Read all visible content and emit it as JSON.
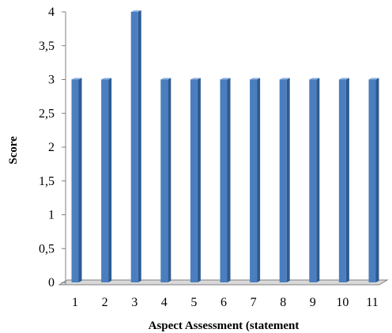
{
  "chart_data": {
    "type": "bar",
    "title": "",
    "xlabel": "Aspect Assessment (statement",
    "ylabel": "Score",
    "categories": [
      "1",
      "2",
      "3",
      "4",
      "5",
      "6",
      "7",
      "8",
      "9",
      "10",
      "11"
    ],
    "values": [
      3,
      3,
      4,
      3,
      3,
      3,
      3,
      3,
      3,
      3,
      3
    ],
    "ylim": [
      0,
      4
    ],
    "y_ticks": [
      "0",
      "0,5",
      "1",
      "1,5",
      "2",
      "2,5",
      "3",
      "3,5",
      "4"
    ],
    "grid": false,
    "legend": "none",
    "colors": {
      "bar_front": "#4a7ebf",
      "bar_side": "#2e5a91",
      "bar_top": "#8fb2e0",
      "floor": "#d9d9d9",
      "axis": "#7f7f7f"
    }
  }
}
